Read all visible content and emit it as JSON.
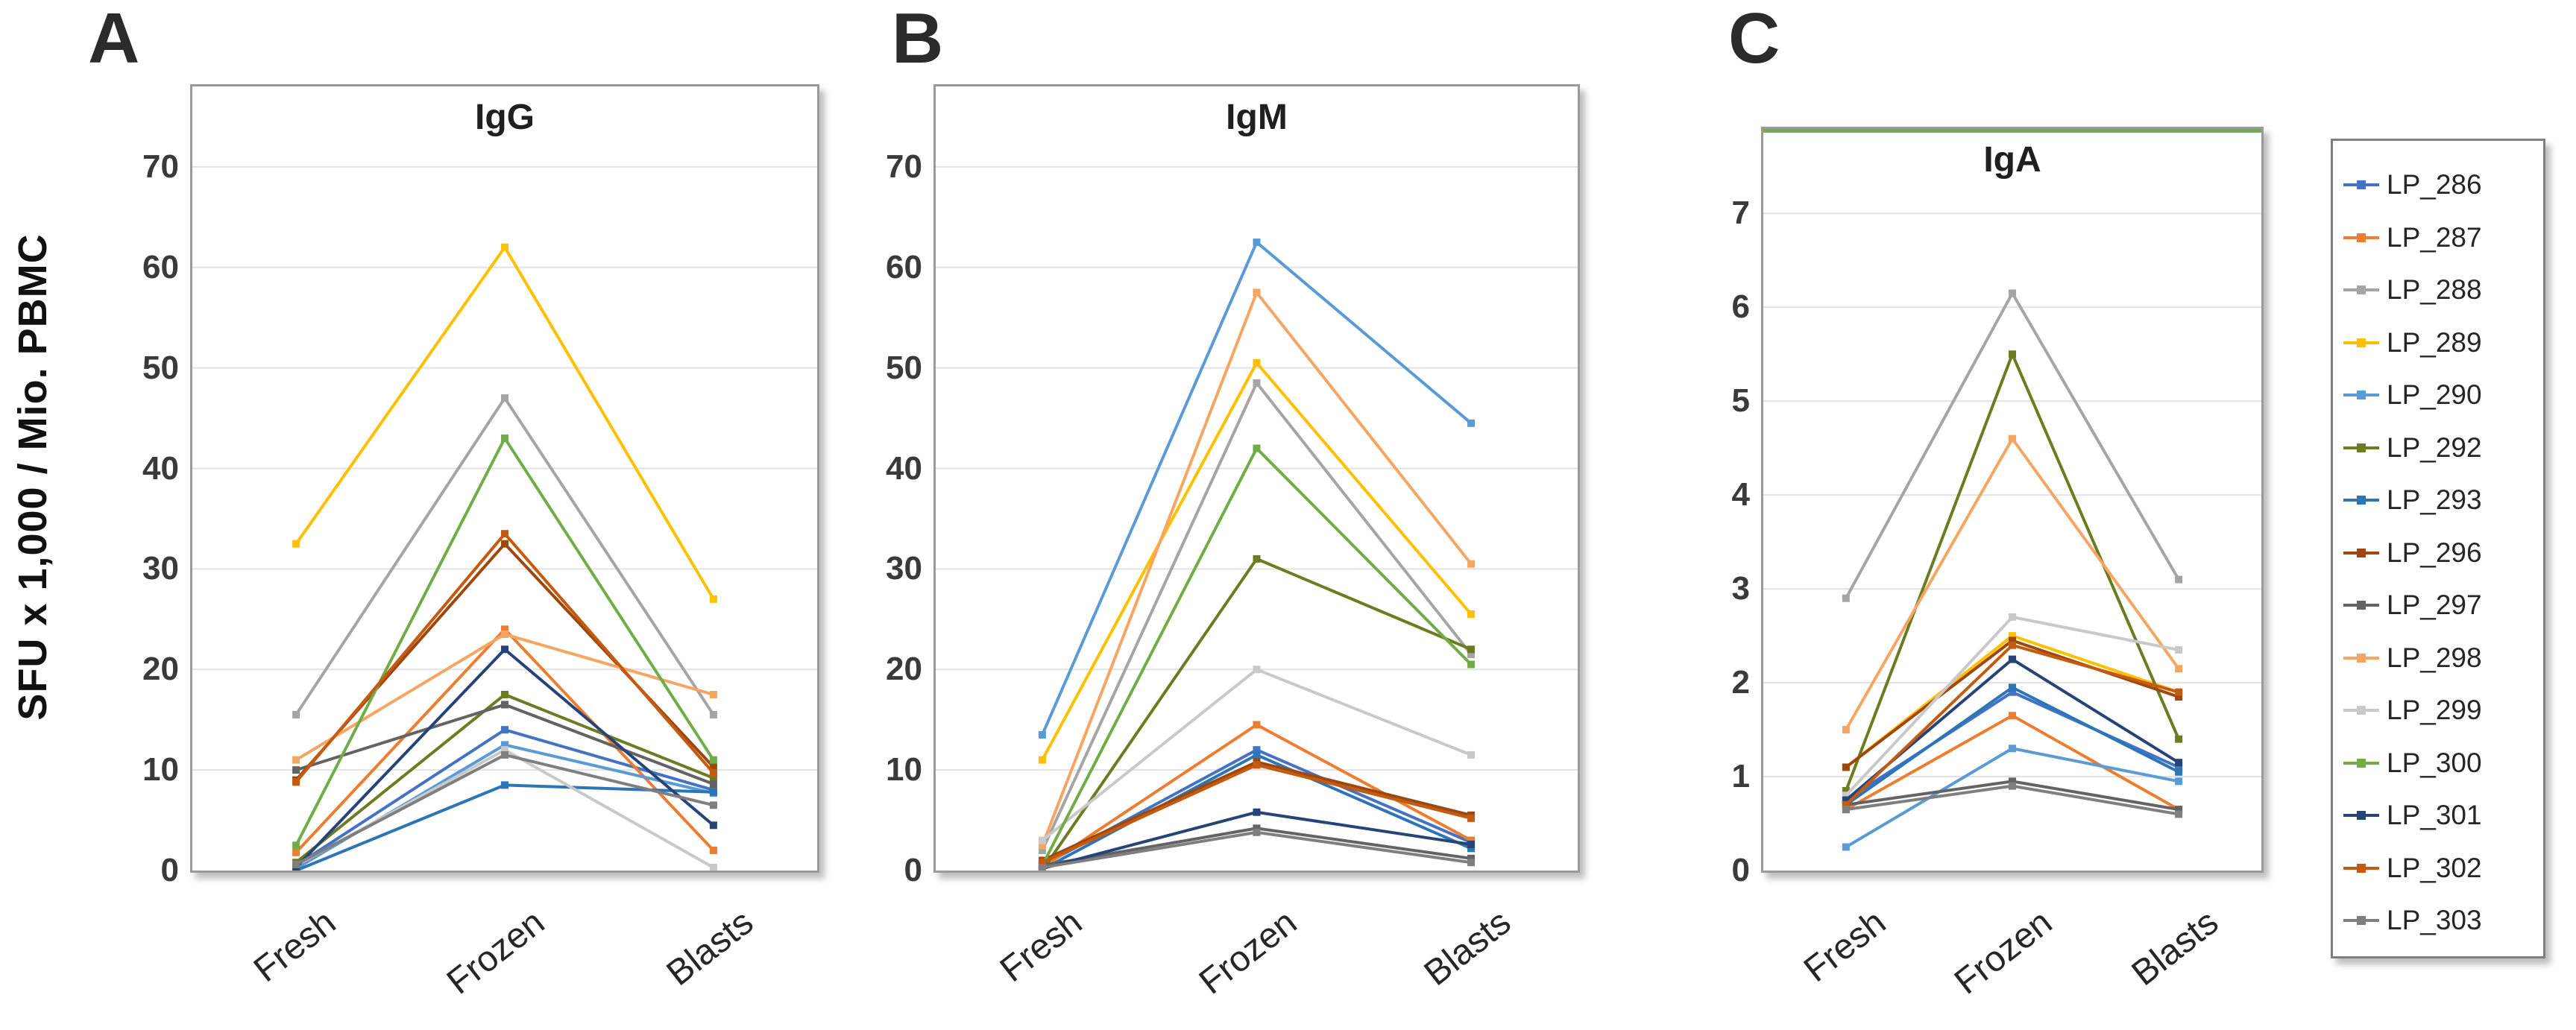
{
  "figure": {
    "y_axis_title": "SFU x 1,000 / Mio. PBMC",
    "panels": [
      {
        "letter": "A",
        "title": "IgG"
      },
      {
        "letter": "B",
        "title": "IgM"
      },
      {
        "letter": "C",
        "title": "IgA"
      }
    ]
  },
  "legend": {
    "items": [
      "LP_286",
      "LP_287",
      "LP_288",
      "LP_289",
      "LP_290",
      "LP_292",
      "LP_293",
      "LP_296",
      "LP_297",
      "LP_298",
      "LP_299",
      "LP_300",
      "LP_301",
      "LP_302",
      "LP_303"
    ]
  },
  "series": [
    {
      "name": "LP_286",
      "color": "#4472C4"
    },
    {
      "name": "LP_287",
      "color": "#ED7D31"
    },
    {
      "name": "LP_288",
      "color": "#A5A5A5"
    },
    {
      "name": "LP_289",
      "color": "#FFC000"
    },
    {
      "name": "LP_290",
      "color": "#5B9BD5"
    },
    {
      "name": "LP_292",
      "color": "#6B7C23"
    },
    {
      "name": "LP_293",
      "color": "#2E75B6"
    },
    {
      "name": "LP_296",
      "color": "#9E480E"
    },
    {
      "name": "LP_297",
      "color": "#636363"
    },
    {
      "name": "LP_298",
      "color": "#F5A663"
    },
    {
      "name": "LP_299",
      "color": "#C9C9C9"
    },
    {
      "name": "LP_300",
      "color": "#70AD47"
    },
    {
      "name": "LP_301",
      "color": "#264478"
    },
    {
      "name": "LP_302",
      "color": "#C55A11"
    },
    {
      "name": "LP_303",
      "color": "#7F7F7F"
    }
  ],
  "chart_data": [
    {
      "type": "line",
      "panel": "A",
      "title": "IgG",
      "categories": [
        "Fresh",
        "Frozen",
        "Blasts"
      ],
      "ylabel": "SFU x 1,000 / Mio. PBMC",
      "ylim": [
        0,
        78
      ],
      "yticks": [
        0,
        10,
        20,
        30,
        40,
        50,
        60,
        70
      ],
      "grid": true,
      "series": [
        {
          "name": "LP_286",
          "values": [
            0.5,
            14,
            8
          ]
        },
        {
          "name": "LP_287",
          "values": [
            1.8,
            24,
            2
          ]
        },
        {
          "name": "LP_288",
          "values": [
            15.5,
            47,
            15.5
          ]
        },
        {
          "name": "LP_289",
          "values": [
            32.5,
            62,
            27
          ]
        },
        {
          "name": "LP_290",
          "values": [
            0.2,
            12.5,
            7.7
          ]
        },
        {
          "name": "LP_292",
          "values": [
            0.8,
            17.5,
            9.2
          ]
        },
        {
          "name": "LP_293",
          "values": [
            0,
            8.5,
            7.8
          ]
        },
        {
          "name": "LP_296",
          "values": [
            9,
            32.5,
            10.3
          ]
        },
        {
          "name": "LP_297",
          "values": [
            10,
            16.5,
            8.6
          ]
        },
        {
          "name": "LP_298",
          "values": [
            11,
            23.5,
            17.5
          ]
        },
        {
          "name": "LP_299",
          "values": [
            0.5,
            12,
            0.3
          ]
        },
        {
          "name": "LP_300",
          "values": [
            2.5,
            43,
            11
          ]
        },
        {
          "name": "LP_301",
          "values": [
            0.3,
            22,
            4.5
          ]
        },
        {
          "name": "LP_302",
          "values": [
            8.8,
            33.5,
            9.7
          ]
        },
        {
          "name": "LP_303",
          "values": [
            0.6,
            11.5,
            6.5
          ]
        }
      ]
    },
    {
      "type": "line",
      "panel": "B",
      "title": "IgM",
      "categories": [
        "Fresh",
        "Frozen",
        "Blasts"
      ],
      "ylim": [
        0,
        78
      ],
      "yticks": [
        0,
        10,
        20,
        30,
        40,
        50,
        60,
        70
      ],
      "grid": true,
      "series": [
        {
          "name": "LP_286",
          "values": [
            0.5,
            12,
            2.8
          ]
        },
        {
          "name": "LP_287",
          "values": [
            0.3,
            14.5,
            3
          ]
        },
        {
          "name": "LP_288",
          "values": [
            2,
            48.5,
            21.5
          ]
        },
        {
          "name": "LP_289",
          "values": [
            11,
            50.5,
            25.5
          ]
        },
        {
          "name": "LP_290",
          "values": [
            13.5,
            62.5,
            44.5
          ]
        },
        {
          "name": "LP_292",
          "values": [
            0,
            31,
            22
          ]
        },
        {
          "name": "LP_293",
          "values": [
            0.1,
            11.5,
            2.2
          ]
        },
        {
          "name": "LP_296",
          "values": [
            1,
            10.8,
            5.5
          ]
        },
        {
          "name": "LP_297",
          "values": [
            0.5,
            4.2,
            1.2
          ]
        },
        {
          "name": "LP_298",
          "values": [
            2.5,
            57.5,
            30.5
          ]
        },
        {
          "name": "LP_299",
          "values": [
            3,
            20,
            11.5
          ]
        },
        {
          "name": "LP_300",
          "values": [
            0.5,
            42,
            20.5
          ]
        },
        {
          "name": "LP_301",
          "values": [
            0.2,
            5.8,
            2.6
          ]
        },
        {
          "name": "LP_302",
          "values": [
            0.8,
            10.5,
            5.2
          ]
        },
        {
          "name": "LP_303",
          "values": [
            0.3,
            3.8,
            0.8
          ]
        }
      ]
    },
    {
      "type": "line",
      "panel": "C",
      "title": "IgA",
      "categories": [
        "Fresh",
        "Frozen",
        "Blasts"
      ],
      "ylim": [
        0,
        7.9
      ],
      "yticks": [
        0,
        1,
        2,
        3,
        4,
        5,
        6,
        7
      ],
      "grid": true,
      "series": [
        {
          "name": "LP_286",
          "values": [
            0.75,
            1.9,
            1.1
          ]
        },
        {
          "name": "LP_287",
          "values": [
            0.65,
            1.65,
            0.65
          ]
        },
        {
          "name": "LP_288",
          "values": [
            2.9,
            6.15,
            3.1
          ]
        },
        {
          "name": "LP_289",
          "values": [
            1.1,
            2.5,
            1.9
          ]
        },
        {
          "name": "LP_290",
          "values": [
            0.25,
            1.3,
            0.95
          ]
        },
        {
          "name": "LP_292",
          "values": [
            0.85,
            5.5,
            1.4
          ]
        },
        {
          "name": "LP_293",
          "values": [
            0.7,
            1.95,
            1.05
          ]
        },
        {
          "name": "LP_296",
          "values": [
            1.1,
            2.45,
            1.85
          ]
        },
        {
          "name": "LP_297",
          "values": [
            0.7,
            0.95,
            0.65
          ]
        },
        {
          "name": "LP_298",
          "values": [
            1.5,
            4.6,
            2.15
          ]
        },
        {
          "name": "LP_299",
          "values": [
            0.8,
            2.7,
            2.35
          ]
        },
        {
          "name": "LP_300",
          "values": [
            7.9,
            7.9,
            7.9
          ],
          "clipped": true,
          "note": "line runs along top plot border (values at/above axis maximum)"
        },
        {
          "name": "LP_301",
          "values": [
            0.75,
            2.25,
            1.15
          ]
        },
        {
          "name": "LP_302",
          "values": [
            0.7,
            2.4,
            1.9
          ]
        },
        {
          "name": "LP_303",
          "values": [
            0.65,
            0.9,
            0.6
          ]
        }
      ]
    }
  ]
}
